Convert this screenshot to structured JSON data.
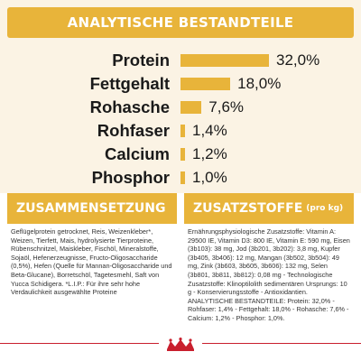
{
  "title": "ANALYTISCHE BESTANDTEILE",
  "chart_data": {
    "type": "bar",
    "orientation": "horizontal",
    "title": "ANALYTISCHE BESTANDTEILE",
    "categories": [
      "Protein",
      "Fettgehalt",
      "Rohasche",
      "Rohfaser",
      "Calcium",
      "Phosphor"
    ],
    "values": [
      32.0,
      18.0,
      7.6,
      1.4,
      1.2,
      1.0
    ],
    "value_labels": [
      "32,0%",
      "18,0%",
      "7,6%",
      "1,4%",
      "1,2%",
      "1,0%"
    ],
    "unit": "%",
    "xlim": [
      0,
      32.0
    ],
    "grid": false,
    "bar_color": "#e8b43a"
  },
  "composition": {
    "title": "ZUSAMMENSETZUNG",
    "text": "Geflügelprotein getrocknet, Reis, Weizenkleber*, Weizen, Tierfett, Mais, hydrolysierte Tierproteine, Rübenschnitzel, Maiskleber, Fischöl, Mineralstoffe, Sojaöl, Hefenerzeugnisse, Fructo-Oligosaccharide (0,5%), Hefen (Quelle für Mannan-Oligosaccharide und Beta-Glucane), Borretschöl, Tagetesmehl, Saft von Yucca Schidigera. *L.I.P.: Für ihre sehr hohe Verdaulichkeit ausgewählte Proteine"
  },
  "additives": {
    "title": "ZUSATZSTOFFE",
    "title_suffix": "(pro kg)",
    "text": "Ernährungsphysiologische Zusatzstoffe: Vitamin A: 29500 IE, Vitamin D3: 800 IE, Vitamin E: 590 mg, Eisen (3b103): 38 mg, Jod (3b201, 3b202): 3,8 mg, Kupfer (3b405, 3b406): 12 mg, Mangan (3b502, 3b504): 49 mg, Zink (3b603, 3b605, 3b606): 132 mg, Selen (3b801, 3b811, 3b812): 0,08 mg - Technologische Zusatzstoffe: Klinoptilolith sedimentären Ursprungs: 10 g - Konservierungsstoffe - Antioxidantien. ANALYTISCHE BESTANDTEILE: Protein: 32,0% - Rohfaser: 1,4% - Fettgehalt: 18,0% - Rohasche: 7,6% - Calcium: 1,2% - Phosphor: 1,0%."
  },
  "brand": {
    "name": "ROYAL CANIN",
    "accent": "#c91f2e"
  },
  "colors": {
    "gold": "#e8b43a",
    "panel": "#fbf3e4",
    "red": "#c91f2e"
  }
}
